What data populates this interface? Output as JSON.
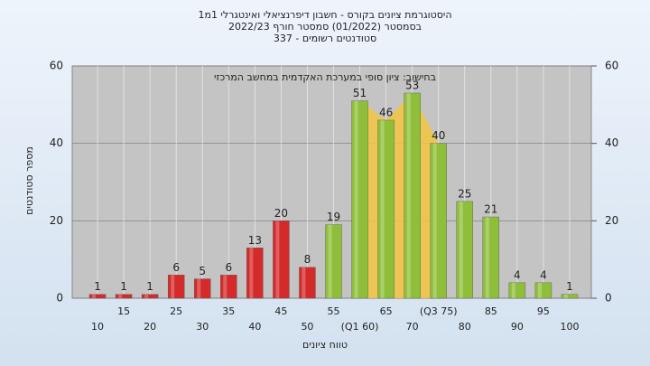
{
  "chart_data": {
    "type": "bar",
    "title": [
      "היסטוגרמת ציונים בקורס - חשבון דיפרנציאלי ואינטגרלי 1מ1",
      "בסמסטר  (01/2022)  סמסטר חורף 2022/23",
      "סטודנטים רשומים - 337"
    ],
    "annotation": "בחישוב: ציון סופי במערכת האקדמית במחשב המרכזי",
    "ylabel": "מספר סטודנטים",
    "xlabel": "טווח ציונים",
    "categories": [
      "10",
      "15",
      "20",
      "25",
      "30",
      "35",
      "40",
      "45",
      "50",
      "55",
      "(Q1 60)",
      "65",
      "70",
      "(Q3 75)",
      "80",
      "85",
      "90",
      "95",
      "100"
    ],
    "values": [
      1,
      1,
      1,
      6,
      5,
      6,
      13,
      20,
      8,
      19,
      51,
      46,
      53,
      40,
      25,
      21,
      4,
      4,
      1
    ],
    "colors": [
      "#d42a2a",
      "#d42a2a",
      "#d42a2a",
      "#d42a2a",
      "#d42a2a",
      "#d42a2a",
      "#d42a2a",
      "#d42a2a",
      "#d42a2a",
      "#8fbf3a",
      "#8fbf3a",
      "#8fbf3a",
      "#8fbf3a",
      "#8fbf3a",
      "#8fbf3a",
      "#8fbf3a",
      "#8fbf3a",
      "#8fbf3a",
      "#8fbf3a"
    ],
    "quartile_fill": "#f5c542",
    "ylim": [
      0,
      60
    ],
    "yticks": [
      0,
      20,
      40,
      60
    ],
    "y2lim": [
      0,
      60
    ],
    "y2ticks": [
      0,
      20,
      40,
      60
    ],
    "grid": true
  }
}
